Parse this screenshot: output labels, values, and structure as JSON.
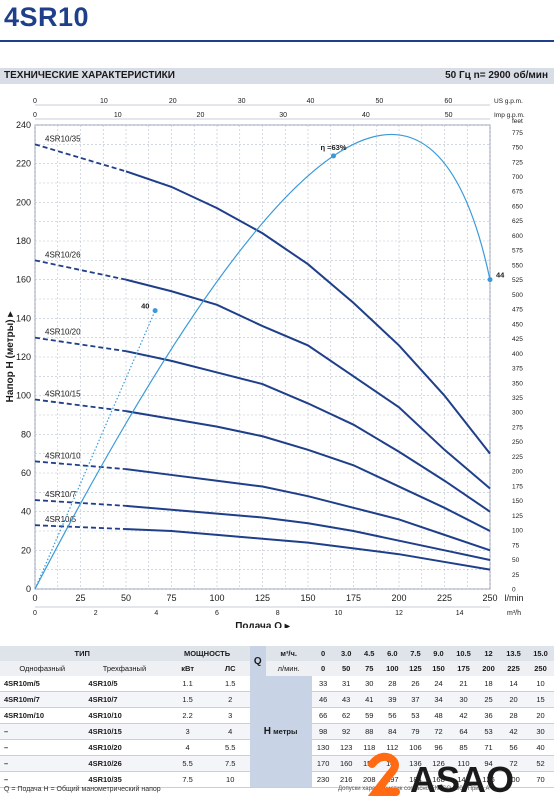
{
  "header": {
    "title": "4SR10"
  },
  "section": {
    "left": "ТЕХНИЧЕСКИЕ ХАРАКТЕРИСТИКИ",
    "right": "50 Гц   n= 2900 об/мин"
  },
  "colors": {
    "curve": "#1f3f8a",
    "efficiency": "#3a9ad9",
    "grid": "#b7c0cf",
    "brand": "#ff6a13"
  },
  "chart_data": {
    "type": "line",
    "title": "",
    "xlabel": "Подача Q",
    "xlabel_unit": "l/min",
    "ylabel": "Напор H (метры)",
    "ylabel_right": "feet",
    "xlim": [
      0,
      250
    ],
    "ylim": [
      0,
      240
    ],
    "x_ticks": [
      0,
      25,
      50,
      75,
      100,
      125,
      150,
      175,
      200,
      225,
      250
    ],
    "y_ticks": [
      0,
      20,
      40,
      60,
      80,
      100,
      120,
      140,
      160,
      180,
      200,
      220,
      240
    ],
    "feet_ticks": [
      0,
      25,
      50,
      75,
      100,
      125,
      150,
      175,
      200,
      225,
      250,
      275,
      300,
      325,
      350,
      375,
      400,
      425,
      450,
      475,
      500,
      525,
      550,
      575,
      600,
      625,
      650,
      675,
      700,
      725,
      750,
      775
    ],
    "top_axes": [
      {
        "unit": "US g.p.m.",
        "max": 66.05,
        "ticks": [
          0,
          10,
          20,
          30,
          40,
          50,
          60
        ]
      },
      {
        "unit": "Imp g.p.m.",
        "max": 55.0,
        "ticks": [
          0,
          10,
          20,
          30,
          40,
          50
        ]
      }
    ],
    "bottom_axes": [
      {
        "unit": "m³/h",
        "max": 15,
        "ticks": [
          0,
          2,
          4,
          6,
          8,
          10,
          12,
          14
        ]
      }
    ],
    "x": [
      50,
      75,
      100,
      125,
      150,
      175,
      200,
      225,
      250
    ],
    "series": [
      {
        "name": "4SR10/35",
        "h0": 230,
        "values": [
          216,
          208,
          197,
          184,
          168,
          148,
          126,
          100,
          70
        ]
      },
      {
        "name": "4SR10/26",
        "h0": 170,
        "values": [
          160,
          154,
          147,
          136,
          126,
          110,
          94,
          72,
          52
        ]
      },
      {
        "name": "4SR10/20",
        "h0": 130,
        "values": [
          123,
          118,
          112,
          106,
          96,
          85,
          71,
          56,
          40
        ]
      },
      {
        "name": "4SR10/15",
        "h0": 98,
        "values": [
          92,
          88,
          84,
          79,
          72,
          64,
          53,
          42,
          30
        ]
      },
      {
        "name": "4SR10/10",
        "h0": 66,
        "values": [
          62,
          59,
          56,
          53,
          48,
          42,
          36,
          28,
          20
        ]
      },
      {
        "name": "4SR10/7",
        "h0": 46,
        "values": [
          43,
          41,
          39,
          37,
          34,
          30,
          25,
          20,
          15
        ]
      },
      {
        "name": "4SR10/5",
        "h0": 33,
        "values": [
          31,
          30,
          28,
          26,
          24,
          21,
          18,
          14,
          10
        ]
      }
    ],
    "efficiency": {
      "peak_label": "η =63%",
      "points": [
        {
          "x": 66,
          "y": 144,
          "label": "40"
        },
        {
          "x": 164,
          "y": 224,
          "label": ""
        },
        {
          "x": 250,
          "y": 160,
          "label": "44"
        }
      ]
    }
  },
  "table": {
    "head": {
      "type": "ТИП",
      "single": "Однофазный",
      "three": "Трехфазный",
      "power": "МОЩНОСТЬ",
      "kw": "кВт",
      "hp": "ЛС",
      "q": "Q",
      "m3h": "м³/ч.",
      "lmin": "л/мин.",
      "h": "H",
      "h_unit": "метры"
    },
    "m3h": [
      "0",
      "3.0",
      "4.5",
      "6.0",
      "7.5",
      "9.0",
      "10.5",
      "12",
      "13.5",
      "15.0"
    ],
    "lmin": [
      "0",
      "50",
      "75",
      "100",
      "125",
      "150",
      "175",
      "200",
      "225",
      "250"
    ],
    "rows": [
      {
        "single": "4SR10m/5",
        "three": "4SR10/5",
        "kw": "1.1",
        "hp": "1.5",
        "h": [
          "33",
          "31",
          "30",
          "28",
          "26",
          "24",
          "21",
          "18",
          "14",
          "10"
        ]
      },
      {
        "single": "4SR10m/7",
        "three": "4SR10/7",
        "kw": "1.5",
        "hp": "2",
        "h": [
          "46",
          "43",
          "41",
          "39",
          "37",
          "34",
          "30",
          "25",
          "20",
          "15"
        ]
      },
      {
        "single": "4SR10m/10",
        "three": "4SR10/10",
        "kw": "2.2",
        "hp": "3",
        "h": [
          "66",
          "62",
          "59",
          "56",
          "53",
          "48",
          "42",
          "36",
          "28",
          "20"
        ]
      },
      {
        "single": "–",
        "three": "4SR10/15",
        "kw": "3",
        "hp": "4",
        "h": [
          "98",
          "92",
          "88",
          "84",
          "79",
          "72",
          "64",
          "53",
          "42",
          "30"
        ]
      },
      {
        "single": "–",
        "three": "4SR10/20",
        "kw": "4",
        "hp": "5.5",
        "h": [
          "130",
          "123",
          "118",
          "112",
          "106",
          "96",
          "85",
          "71",
          "56",
          "40"
        ]
      },
      {
        "single": "–",
        "three": "4SR10/26",
        "kw": "5.5",
        "hp": "7.5",
        "h": [
          "170",
          "160",
          "154",
          "147",
          "136",
          "126",
          "110",
          "94",
          "72",
          "52"
        ]
      },
      {
        "single": "–",
        "three": "4SR10/35",
        "kw": "7.5",
        "hp": "10",
        "h": [
          "230",
          "216",
          "208",
          "197",
          "184",
          "168",
          "148",
          "126",
          "100",
          "70"
        ]
      }
    ]
  },
  "footer": {
    "note": "Q = Подача  H = Общий манометрический напор",
    "right": "Допуски характеристик согласно EN ISO 9906 Прил. А"
  },
  "logo": {
    "text": "ASAO"
  }
}
